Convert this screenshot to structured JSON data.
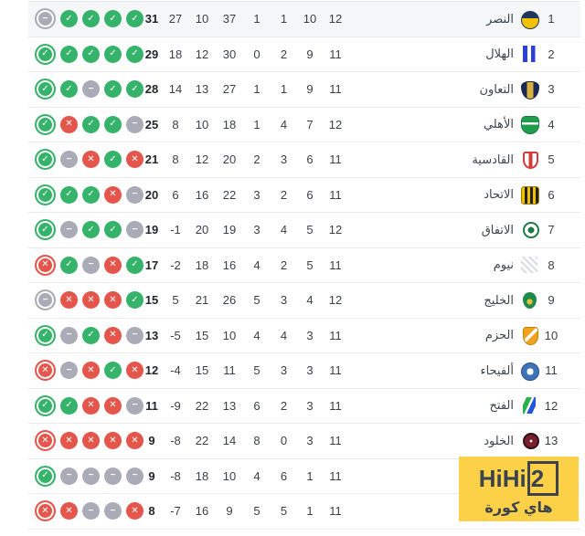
{
  "app": {
    "description": "football-league-standings-widget",
    "language": "ar",
    "direction": "rtl"
  },
  "form_legend": {
    "win_color": "#36b36a",
    "loss_color": "#e4554b",
    "draw_color": "#a9abb7",
    "win_glyph": "✓",
    "loss_glyph": "✕",
    "draw_glyph": "−",
    "most_recent_style": "ringed-first-circle"
  },
  "columns_rtl_order": [
    "position",
    "team",
    "played",
    "wins",
    "draws",
    "losses",
    "goals_for",
    "goals_against",
    "goal_diff",
    "points",
    "form"
  ],
  "table": {
    "rows": [
      {
        "pos": "1",
        "name": "النصر",
        "logo_icon": "alnassr-logo",
        "played": "12",
        "wins": "10",
        "draws": "1",
        "losses": "1",
        "gf": "37",
        "ga": "10",
        "gd": "27",
        "points": "31",
        "form": [
          "draw",
          "win",
          "win",
          "win",
          "win"
        ],
        "highlighted": true
      },
      {
        "pos": "2",
        "name": "الهلال",
        "logo_icon": "alhilal-logo",
        "played": "11",
        "wins": "9",
        "draws": "2",
        "losses": "0",
        "gf": "30",
        "ga": "12",
        "gd": "18",
        "points": "29",
        "form": [
          "win",
          "win",
          "win",
          "win",
          "win"
        ],
        "highlighted": false
      },
      {
        "pos": "3",
        "name": "التعاون",
        "logo_icon": "altaawoun-logo",
        "played": "11",
        "wins": "9",
        "draws": "1",
        "losses": "1",
        "gf": "27",
        "ga": "13",
        "gd": "14",
        "points": "28",
        "form": [
          "win",
          "win",
          "draw",
          "win",
          "win"
        ],
        "highlighted": false
      },
      {
        "pos": "4",
        "name": "الأهلي",
        "logo_icon": "alahli-logo",
        "played": "12",
        "wins": "7",
        "draws": "4",
        "losses": "1",
        "gf": "18",
        "ga": "10",
        "gd": "8",
        "points": "25",
        "form": [
          "win",
          "loss",
          "win",
          "win",
          "draw"
        ],
        "highlighted": false
      },
      {
        "pos": "5",
        "name": "القادسية",
        "logo_icon": "alqadsiah-logo",
        "played": "11",
        "wins": "6",
        "draws": "3",
        "losses": "2",
        "gf": "20",
        "ga": "12",
        "gd": "8",
        "points": "21",
        "form": [
          "win",
          "draw",
          "loss",
          "win",
          "loss"
        ],
        "highlighted": false
      },
      {
        "pos": "6",
        "name": "الاتحاد",
        "logo_icon": "alittihad-logo",
        "played": "11",
        "wins": "6",
        "draws": "2",
        "losses": "3",
        "gf": "22",
        "ga": "16",
        "gd": "6",
        "points": "20",
        "form": [
          "win",
          "win",
          "win",
          "loss",
          "draw"
        ],
        "highlighted": false
      },
      {
        "pos": "7",
        "name": "الاتفاق",
        "logo_icon": "alettifaq-logo",
        "played": "12",
        "wins": "5",
        "draws": "4",
        "losses": "3",
        "gf": "19",
        "ga": "20",
        "gd": "-1",
        "points": "19",
        "form": [
          "win",
          "draw",
          "win",
          "win",
          "draw"
        ],
        "highlighted": false
      },
      {
        "pos": "8",
        "name": "نيوم",
        "logo_icon": "neom-logo",
        "played": "11",
        "wins": "5",
        "draws": "2",
        "losses": "4",
        "gf": "16",
        "ga": "18",
        "gd": "-2",
        "points": "17",
        "form": [
          "loss",
          "win",
          "draw",
          "loss",
          "win"
        ],
        "highlighted": false
      },
      {
        "pos": "9",
        "name": "الخليج",
        "logo_icon": "alkhaleej-logo",
        "played": "12",
        "wins": "4",
        "draws": "3",
        "losses": "5",
        "gf": "26",
        "ga": "21",
        "gd": "5",
        "points": "15",
        "form": [
          "draw",
          "loss",
          "loss",
          "loss",
          "win"
        ],
        "highlighted": false
      },
      {
        "pos": "10",
        "name": "الحزم",
        "logo_icon": "alhazem-logo",
        "played": "11",
        "wins": "3",
        "draws": "4",
        "losses": "4",
        "gf": "10",
        "ga": "15",
        "gd": "-5",
        "points": "13",
        "form": [
          "win",
          "draw",
          "win",
          "loss",
          "draw"
        ],
        "highlighted": false
      },
      {
        "pos": "11",
        "name": "ألفيحاء",
        "logo_icon": "alfayha-logo",
        "played": "11",
        "wins": "3",
        "draws": "3",
        "losses": "5",
        "gf": "11",
        "ga": "15",
        "gd": "-4",
        "points": "12",
        "form": [
          "loss",
          "draw",
          "loss",
          "win",
          "loss"
        ],
        "highlighted": false
      },
      {
        "pos": "12",
        "name": "الفتح",
        "logo_icon": "alfateh-logo",
        "played": "11",
        "wins": "3",
        "draws": "2",
        "losses": "6",
        "gf": "13",
        "ga": "22",
        "gd": "-9",
        "points": "11",
        "form": [
          "win",
          "win",
          "loss",
          "loss",
          "draw"
        ],
        "highlighted": false
      },
      {
        "pos": "13",
        "name": "الخلود",
        "logo_icon": "alkholood-logo",
        "played": "11",
        "wins": "3",
        "draws": "0",
        "losses": "8",
        "gf": "14",
        "ga": "22",
        "gd": "-8",
        "points": "9",
        "form": [
          "loss",
          "loss",
          "loss",
          "loss",
          "loss"
        ],
        "highlighted": false
      },
      {
        "pos": "",
        "name": "",
        "logo_icon": "hidden-by-watermark",
        "played": "11",
        "wins": "1",
        "draws": "6",
        "losses": "4",
        "gf": "10",
        "ga": "18",
        "gd": "-8",
        "points": "9",
        "form": [
          "win",
          "draw",
          "draw",
          "draw",
          "draw"
        ],
        "highlighted": false
      },
      {
        "pos": "",
        "name": "",
        "logo_icon": "partially-hidden-by-watermark",
        "played": "11",
        "wins": "1",
        "draws": "5",
        "losses": "5",
        "gf": "9",
        "ga": "16",
        "gd": "-7",
        "points": "8",
        "form": [
          "loss",
          "loss",
          "draw",
          "draw",
          "loss"
        ],
        "highlighted": false
      }
    ]
  },
  "watermark": {
    "brand": "HiHi",
    "brand_num": "2",
    "tagline": "هاي كورة",
    "bg_color": "#fcd147",
    "text_color": "#3c434e"
  }
}
